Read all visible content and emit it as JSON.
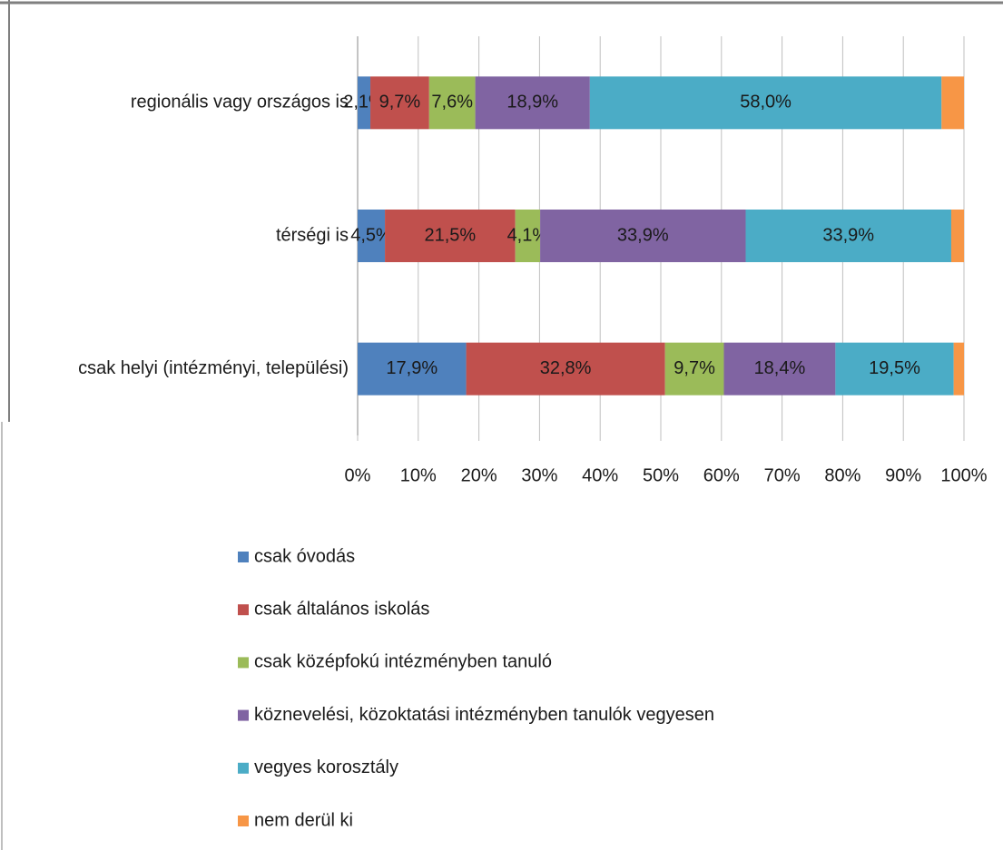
{
  "chart_data": {
    "type": "stacked-bar-horizontal",
    "categories": [
      "regionális vagy országos is",
      "térségi is",
      "csak helyi (intézményi, települési)"
    ],
    "series": [
      {
        "name": "csak óvodás",
        "color": "#4f81bd",
        "values": [
          2.1,
          4.5,
          17.9
        ],
        "value_labels": [
          "2,1%",
          "4,5%",
          "17,9%"
        ]
      },
      {
        "name": "csak általános iskolás",
        "color": "#c0504d",
        "values": [
          9.7,
          21.5,
          32.8
        ],
        "value_labels": [
          "9,7%",
          "21,5%",
          "32,8%"
        ]
      },
      {
        "name": "csak középfokú intézményben tanuló",
        "color": "#9bbb59",
        "values": [
          7.6,
          4.1,
          9.7
        ],
        "value_labels": [
          "7,6%",
          "4,1%",
          "9,7%"
        ]
      },
      {
        "name": "köznevelési, közoktatási intézményben tanulók vegyesen",
        "color": "#8064a2",
        "values": [
          18.9,
          33.9,
          18.4
        ],
        "value_labels": [
          "18,9%",
          "33,9%",
          "18,4%"
        ]
      },
      {
        "name": "vegyes korosztály",
        "color": "#4bacc6",
        "values": [
          58.0,
          33.9,
          19.5
        ],
        "value_labels": [
          "58,0%",
          "33,9%",
          "19,5%"
        ]
      },
      {
        "name": "nem derül ki",
        "color": "#f79646",
        "values": [
          3.7,
          2.1,
          1.7
        ]
      }
    ],
    "xlim": [
      0,
      100
    ],
    "xticks": [
      {
        "value": 0,
        "label": "0%"
      },
      {
        "value": 10,
        "label": "10%"
      },
      {
        "value": 20,
        "label": "20%"
      },
      {
        "value": 30,
        "label": "30%"
      },
      {
        "value": 40,
        "label": "40%"
      },
      {
        "value": 50,
        "label": "50%"
      },
      {
        "value": 60,
        "label": "60%"
      },
      {
        "value": 70,
        "label": "70%"
      },
      {
        "value": 80,
        "label": "80%"
      },
      {
        "value": 90,
        "label": "90%"
      },
      {
        "value": 100,
        "label": "100%"
      }
    ],
    "grid": true,
    "legend": "bottom"
  }
}
